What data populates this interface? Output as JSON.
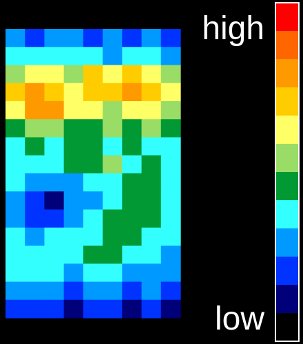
{
  "chart_data": {
    "type": "heatmap",
    "title": "",
    "xlabel": "",
    "ylabel": "",
    "legend": {
      "placement": "right",
      "high_label": "high",
      "low_label": "low",
      "levels": 12
    },
    "colors": [
      "#000000",
      "#00007a",
      "#0033ff",
      "#0099ff",
      "#33ffff",
      "#009933",
      "#99dd66",
      "#ffff66",
      "#ffcc00",
      "#ff9900",
      "#ff6600",
      "#ff0000"
    ],
    "grid_rows": 16,
    "grid_cols": 9,
    "values": [
      [
        3,
        2,
        3,
        3,
        2,
        3,
        2,
        3,
        2
      ],
      [
        4,
        4,
        4,
        4,
        4,
        3,
        4,
        4,
        3
      ],
      [
        6,
        7,
        7,
        6,
        8,
        7,
        8,
        7,
        6
      ],
      [
        8,
        9,
        8,
        7,
        8,
        8,
        9,
        8,
        7
      ],
      [
        7,
        9,
        9,
        7,
        7,
        6,
        7,
        7,
        6
      ],
      [
        5,
        6,
        6,
        5,
        5,
        6,
        5,
        6,
        5
      ],
      [
        4,
        5,
        4,
        5,
        5,
        4,
        5,
        4,
        4
      ],
      [
        4,
        4,
        4,
        5,
        5,
        6,
        4,
        5,
        4
      ],
      [
        4,
        3,
        3,
        3,
        4,
        4,
        5,
        5,
        4
      ],
      [
        3,
        2,
        1,
        3,
        3,
        4,
        5,
        5,
        4
      ],
      [
        3,
        2,
        2,
        3,
        4,
        5,
        5,
        5,
        4
      ],
      [
        4,
        3,
        4,
        4,
        4,
        5,
        5,
        4,
        4
      ],
      [
        4,
        4,
        4,
        4,
        5,
        5,
        4,
        4,
        3
      ],
      [
        4,
        4,
        4,
        3,
        4,
        4,
        3,
        3,
        3
      ],
      [
        3,
        3,
        3,
        2,
        3,
        3,
        2,
        3,
        2
      ],
      [
        2,
        2,
        2,
        1,
        2,
        2,
        1,
        2,
        1
      ]
    ]
  }
}
